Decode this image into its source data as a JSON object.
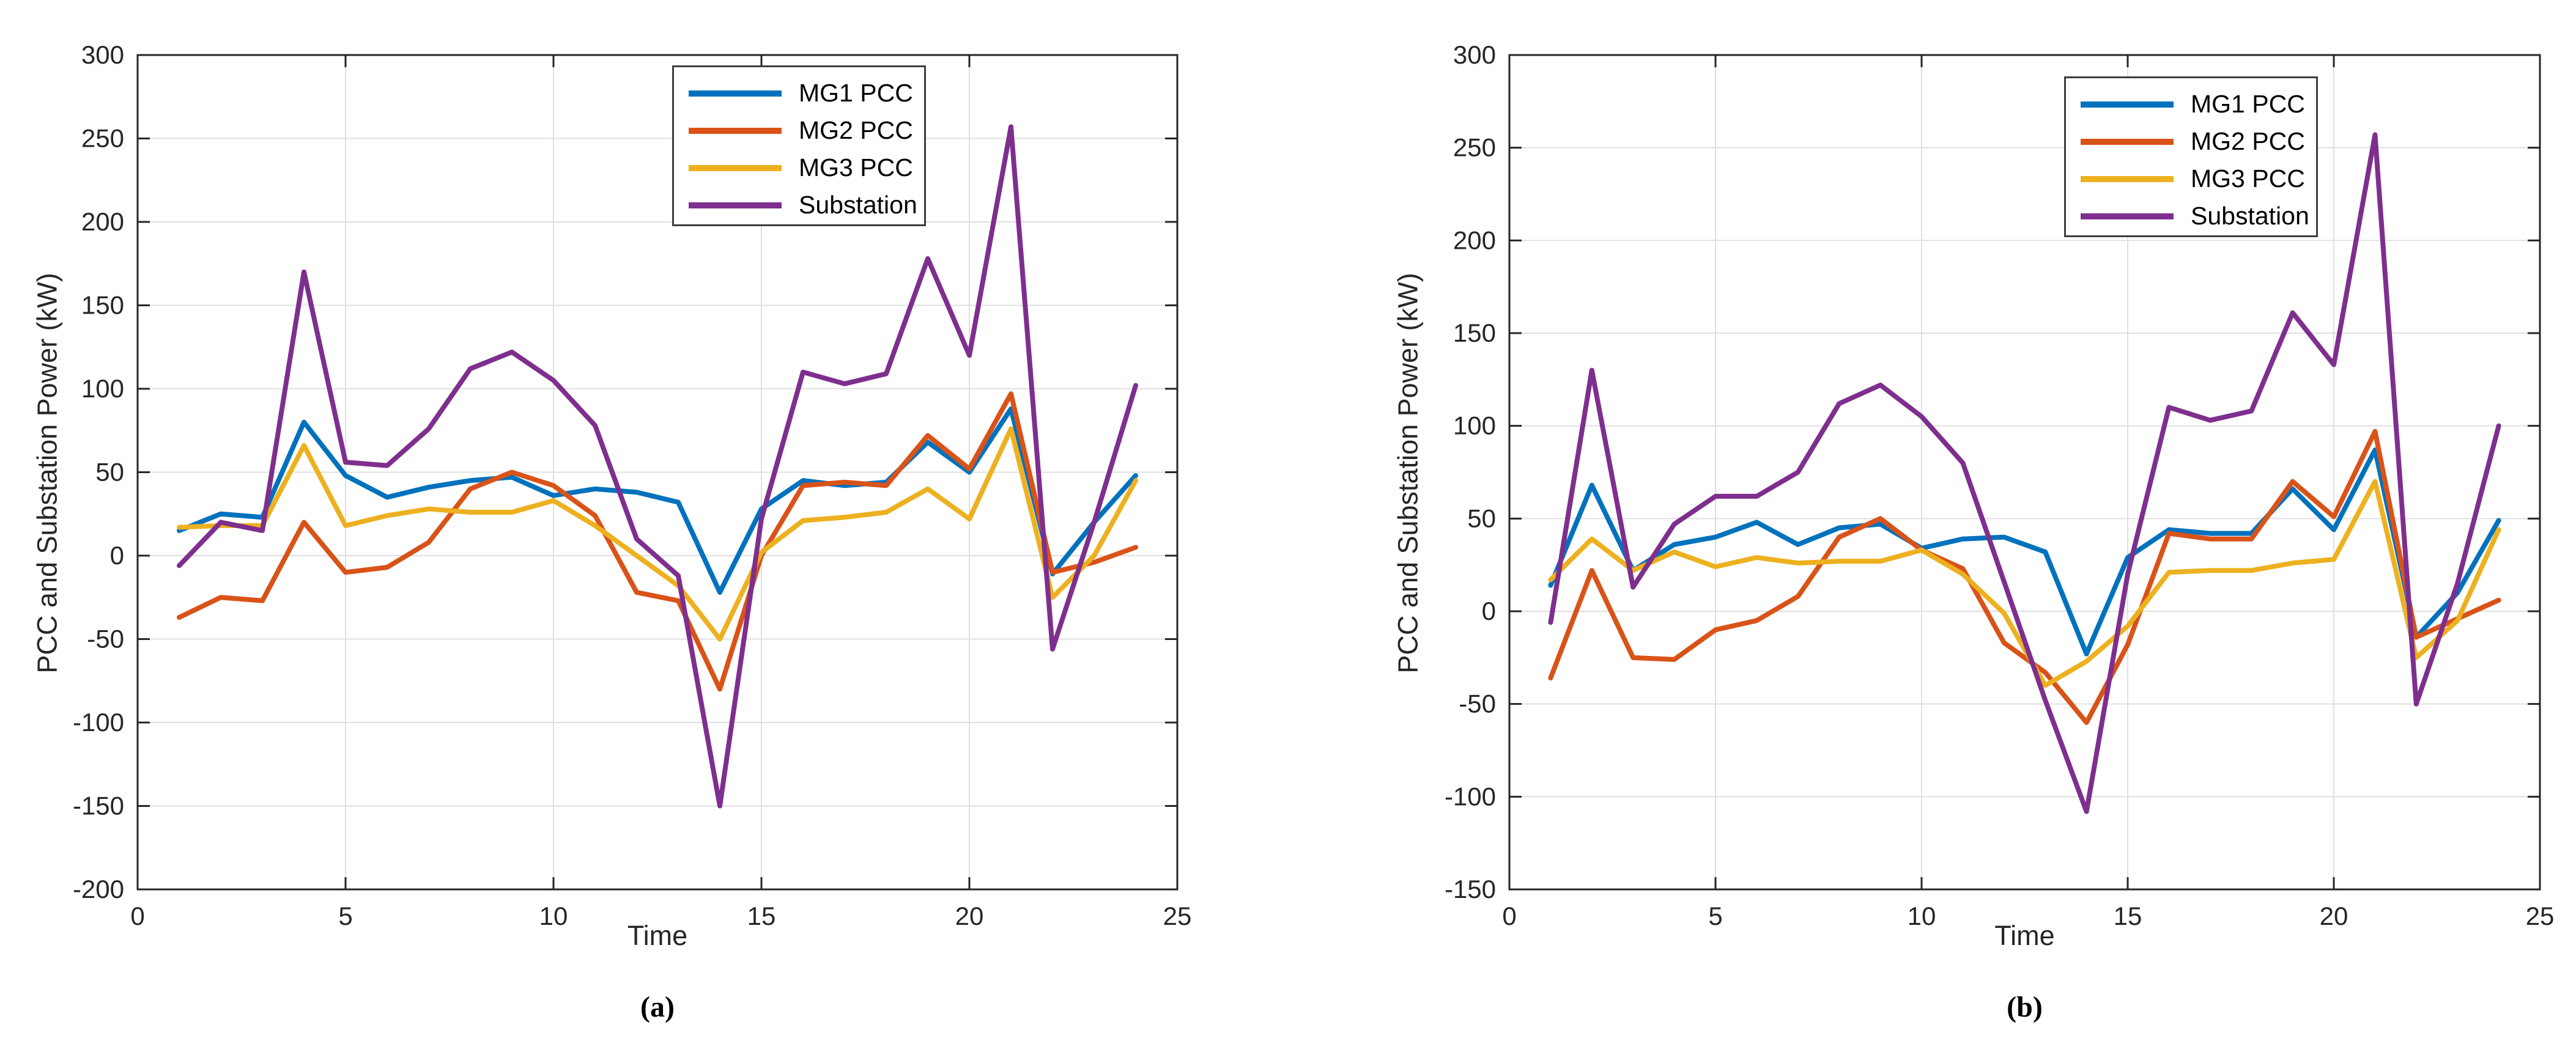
{
  "chart_data": [
    {
      "id": "a",
      "type": "line",
      "caption": "(a)",
      "xlabel": "Time",
      "ylabel": "PCC and Substation Power (kW)",
      "xlim": [
        0,
        25
      ],
      "ylim": [
        -200,
        300
      ],
      "xticks": [
        0,
        5,
        10,
        15,
        20,
        25
      ],
      "yticks": [
        300,
        250,
        200,
        150,
        100,
        50,
        0,
        -50,
        -100,
        -150,
        -200
      ],
      "grid": true,
      "legend_position": "upper center",
      "x": [
        1,
        2,
        3,
        4,
        5,
        6,
        7,
        8,
        9,
        10,
        11,
        12,
        13,
        14,
        15,
        16,
        17,
        18,
        19,
        20,
        21,
        22,
        23,
        24
      ],
      "series": [
        {
          "name": "MG1 PCC",
          "color": "#0072BD",
          "values": [
            15,
            25,
            23,
            80,
            48,
            35,
            41,
            45,
            47,
            36,
            40,
            38,
            32,
            -22,
            28,
            45,
            42,
            44,
            68,
            50,
            88,
            -11,
            20,
            48
          ]
        },
        {
          "name": "MG2 PCC",
          "color": "#D95319",
          "values": [
            -37,
            -25,
            -27,
            20,
            -10,
            -7,
            8,
            40,
            50,
            42,
            24,
            -22,
            -27,
            -80,
            0,
            42,
            44,
            42,
            72,
            52,
            97,
            -10,
            -4,
            5
          ]
        },
        {
          "name": "MG3 PCC",
          "color": "#EDB120",
          "values": [
            17,
            18,
            18,
            66,
            18,
            24,
            28,
            26,
            26,
            33,
            18,
            0,
            -18,
            -50,
            2,
            21,
            23,
            26,
            40,
            22,
            76,
            -25,
            0,
            45
          ]
        },
        {
          "name": "Substation",
          "color": "#7E2F8E",
          "values": [
            -6,
            20,
            15,
            170,
            56,
            54,
            76,
            112,
            122,
            105,
            78,
            10,
            -12,
            -150,
            22,
            110,
            103,
            109,
            178,
            120,
            257,
            -56,
            20,
            102
          ]
        }
      ]
    },
    {
      "id": "b",
      "type": "line",
      "caption": "(b)",
      "xlabel": "Time",
      "ylabel": "PCC and Substation Power (kW)",
      "xlim": [
        0,
        25
      ],
      "ylim": [
        -150,
        300
      ],
      "xticks": [
        0,
        5,
        10,
        15,
        20,
        25
      ],
      "yticks": [
        300,
        250,
        200,
        150,
        100,
        50,
        0,
        -50,
        -100,
        -150
      ],
      "grid": true,
      "legend_position": "upper center",
      "x": [
        1,
        2,
        3,
        4,
        5,
        6,
        7,
        8,
        9,
        10,
        11,
        12,
        13,
        14,
        15,
        16,
        17,
        18,
        19,
        20,
        21,
        22,
        23,
        24
      ],
      "series": [
        {
          "name": "MG1 PCC",
          "color": "#0072BD",
          "values": [
            14,
            68,
            22,
            36,
            40,
            48,
            36,
            45,
            47,
            34,
            39,
            40,
            32,
            -23,
            29,
            44,
            42,
            42,
            66,
            44,
            87,
            -14,
            10,
            49
          ]
        },
        {
          "name": "MG2 PCC",
          "color": "#D95319",
          "values": [
            -36,
            22,
            -25,
            -26,
            -10,
            -5,
            8,
            40,
            50,
            33,
            23,
            -17,
            -33,
            -60,
            -18,
            42,
            39,
            39,
            70,
            51,
            97,
            -14,
            -4,
            6
          ]
        },
        {
          "name": "MG3 PCC",
          "color": "#EDB120",
          "values": [
            17,
            39,
            22,
            32,
            24,
            29,
            26,
            27,
            27,
            33,
            20,
            -1,
            -40,
            -27,
            -8,
            21,
            22,
            22,
            26,
            28,
            70,
            -25,
            -5,
            44
          ]
        },
        {
          "name": "Substation",
          "color": "#7E2F8E",
          "values": [
            -6,
            130,
            13,
            47,
            62,
            62,
            75,
            112,
            122,
            105,
            80,
            16,
            -48,
            -108,
            20,
            110,
            103,
            108,
            161,
            133,
            257,
            -50,
            15,
            100
          ]
        }
      ]
    }
  ]
}
